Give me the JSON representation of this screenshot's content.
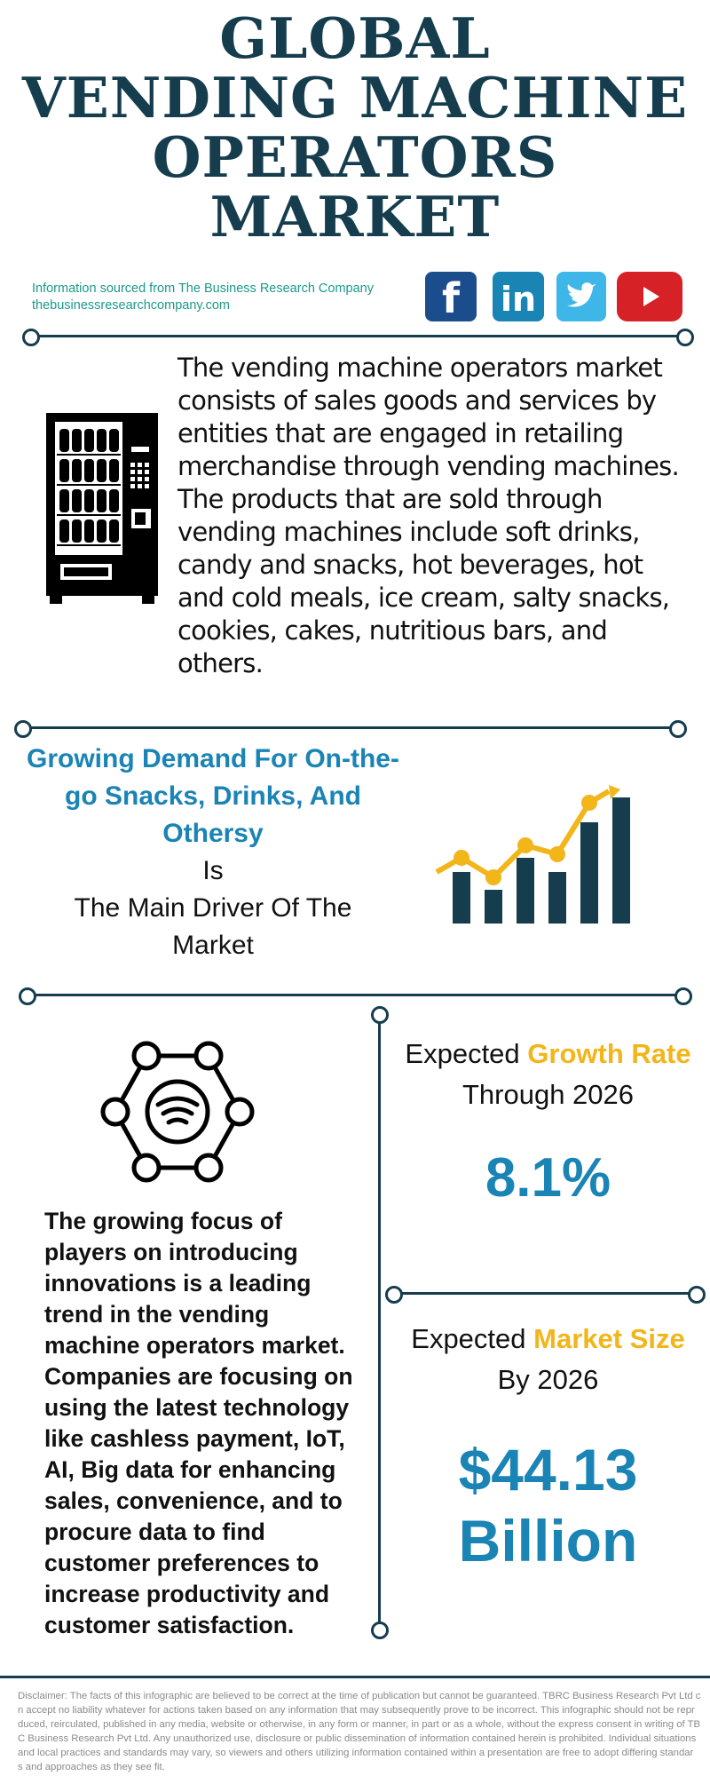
{
  "header": {
    "title_lines": [
      "GLOBAL",
      "VENDING MACHINE",
      "OPERATORS",
      "MARKET"
    ]
  },
  "source": {
    "line1": "Information sourced from The Business Research Company",
    "line2": "thebusinessresearchcompany.com"
  },
  "social": [
    {
      "name": "facebook-icon",
      "color": "#1b4c8c"
    },
    {
      "name": "linkedin-icon",
      "color": "#1a84b5"
    },
    {
      "name": "twitter-icon",
      "color": "#3fb6e8"
    },
    {
      "name": "youtube-icon",
      "color": "#d62126"
    }
  ],
  "description": "The vending machine operators market consists of sales goods and services by entities that are engaged in retailing merchandise through vending machines. The products that are sold through vending machines include soft drinks, candy and snacks, hot beverages, hot and cold meals, ice cream, salty snacks, cookies, cakes, nutritious bars, and others.",
  "driver": {
    "highlight_lines": [
      "Growing Demand For On-the-",
      "go Snacks, Drinks, And",
      "Othersy"
    ],
    "plain_lines": [
      "Is",
      "The Main Driver Of The",
      "Market"
    ]
  },
  "trend": {
    "text": "The growing focus of players on introducing innovations is a leading trend in the vending machine operators market. Companies are focusing on using the latest technology like cashless payment, IoT, AI, Big data for enhancing sales, convenience, and to procure data to find customer preferences to increase productivity and customer satisfaction."
  },
  "growth": {
    "label_prefix": "Expected ",
    "label_accent": "Growth Rate",
    "label_line2": "Through 2026",
    "value": "8.1%"
  },
  "market_size": {
    "label_prefix": "Expected ",
    "label_accent": "Market Size",
    "label_line2": "By 2026",
    "value_line1": "$44.13",
    "value_line2": "Billion"
  },
  "disclaimer": {
    "lines": [
      "Disclaimer: The facts of this infographic are believed to be correct at the time of publication but cannot be guaranteed. TBRC Business Research Pvt Ltd c",
      "n accept no liability whatever for actions taken based on any information that may subsequently prove to be incorrect. This infographic should not be repr",
      "duced, reirculated, published in any media, website or otherwise, in any form or manner, in part or as a whole, without the express consent in writing of TB",
      "C Business Research Pvt Ltd. Any unauthorized use, disclosure or public dissemination of information contained herein is prohibited. Individual situations",
      "and local practices and standards may vary, so viewers and others utilizing information contained within a presentation are free to adopt differing standar",
      "s and approaches as they see fit."
    ]
  },
  "colors": {
    "navy": "#163d4e",
    "blue": "#1a84b5",
    "yellow": "#f2b51a",
    "teal": "#1a9a8a"
  }
}
